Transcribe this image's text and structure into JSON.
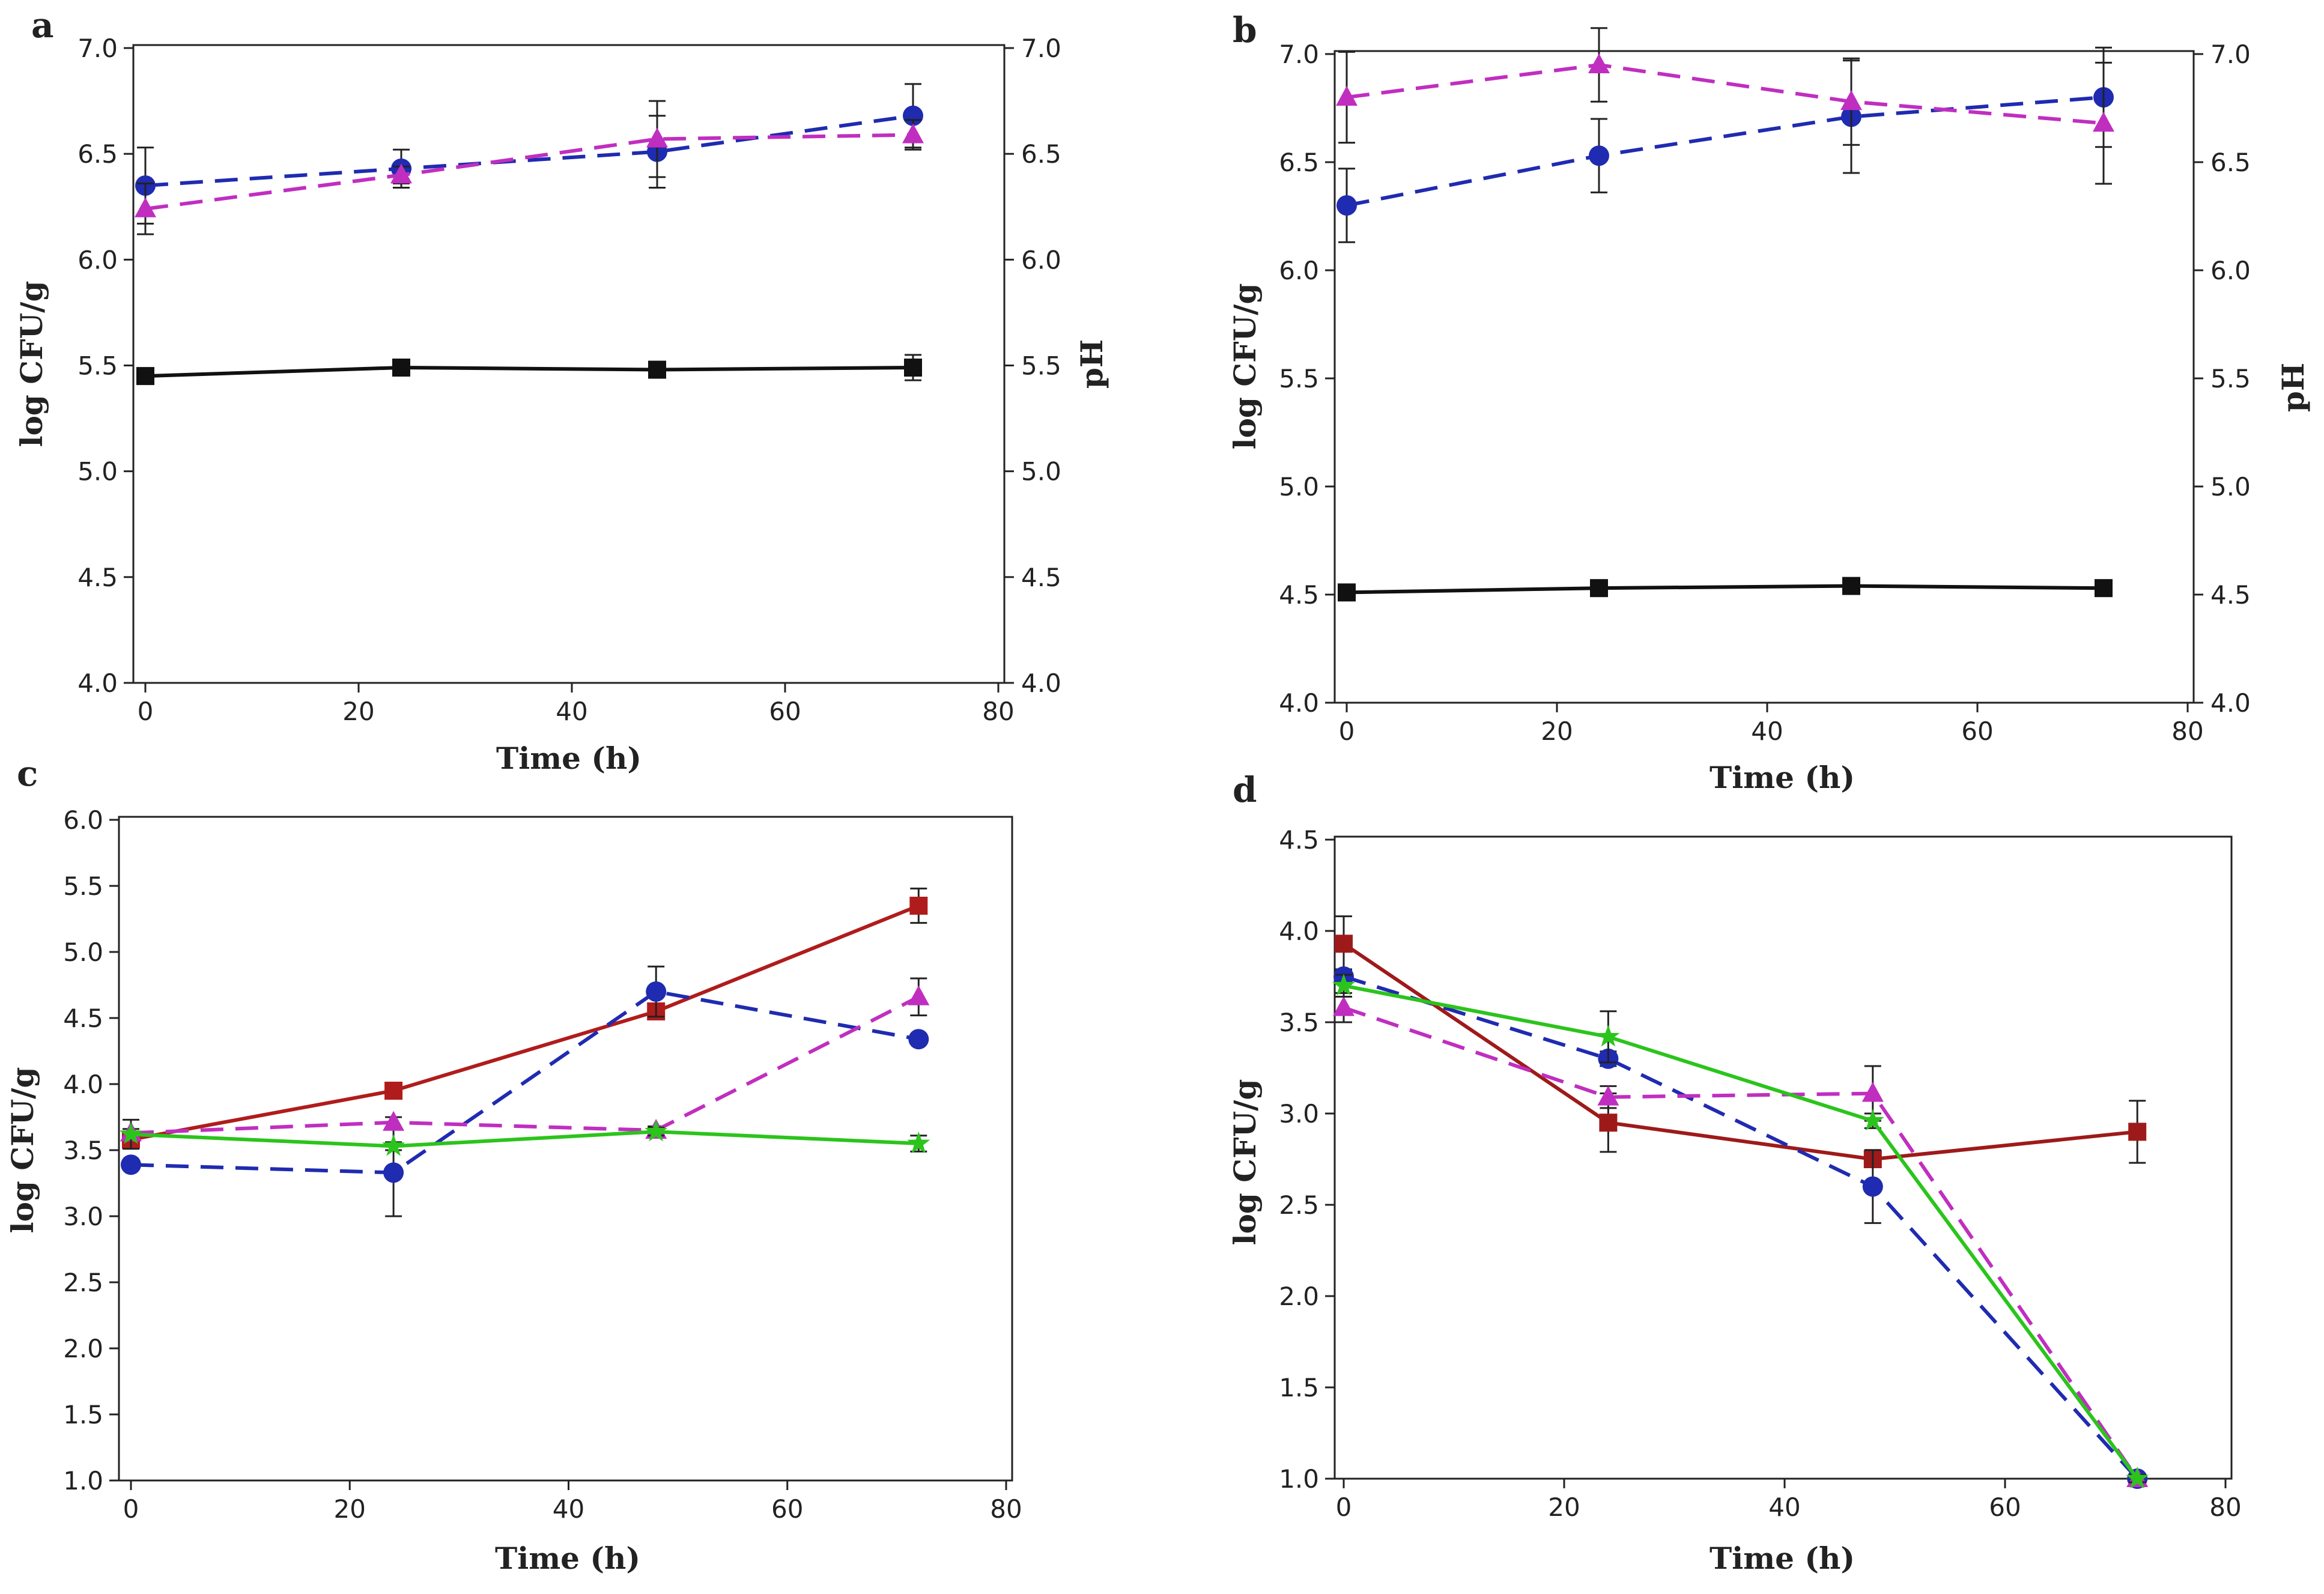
{
  "figure": {
    "panel_labels": [
      "a",
      "b",
      "c",
      "d"
    ]
  },
  "chart_data": [
    {
      "panel": "a",
      "type": "line",
      "title": "",
      "xlabel": "Time (h)",
      "ylabel": "log CFU/g",
      "y2label": "pH",
      "xlim": [
        0,
        80
      ],
      "ylim": [
        4.0,
        7.0
      ],
      "y2lim": [
        4.0,
        7.0
      ],
      "xticks": [
        "0",
        "20",
        "40",
        "60",
        "80"
      ],
      "yticks": [
        "4.0",
        "4.5",
        "5.0",
        "5.5",
        "6.0",
        "6.5",
        "7.0"
      ],
      "y2ticks": [
        "4.0",
        "4.5",
        "5.0",
        "5.5",
        "6.0",
        "6.5",
        "7.0"
      ],
      "x": [
        0,
        24,
        48,
        72
      ],
      "series": [
        {
          "name": "pH",
          "color": "#111111",
          "dash": "solid",
          "marker": "square",
          "axis": "right",
          "values": [
            5.45,
            5.49,
            5.48,
            5.49
          ],
          "errors": [
            0.02,
            0.02,
            0.03,
            0.06
          ]
        },
        {
          "name": "series-blue",
          "color": "#1f2bb0",
          "dash": "dashed",
          "marker": "circle",
          "axis": "left",
          "values": [
            6.35,
            6.43,
            6.51,
            6.68
          ],
          "errors": [
            0.18,
            0.09,
            0.17,
            0.15
          ]
        },
        {
          "name": "series-magenta",
          "color": "#c02ec0",
          "dash": "dashed",
          "marker": "triangle",
          "axis": "left",
          "values": [
            6.24,
            6.4,
            6.57,
            6.59
          ],
          "errors": [
            0.12,
            0.04,
            0.18,
            0.07
          ]
        }
      ]
    },
    {
      "panel": "b",
      "type": "line",
      "title": "",
      "xlabel": "Time (h)",
      "ylabel": "log CFU/g",
      "y2label": "pH",
      "xlim": [
        0,
        80
      ],
      "ylim": [
        4.0,
        7.0
      ],
      "y2lim": [
        4.0,
        7.0
      ],
      "xticks": [
        "0",
        "20",
        "40",
        "60",
        "80"
      ],
      "yticks": [
        "4.0",
        "4.5",
        "5.0",
        "5.5",
        "6.0",
        "6.5",
        "7.0"
      ],
      "y2ticks": [
        "4.0",
        "4.5",
        "5.0",
        "5.5",
        "6.0",
        "6.5",
        "7.0"
      ],
      "x": [
        0,
        24,
        48,
        72
      ],
      "series": [
        {
          "name": "pH",
          "color": "#111111",
          "dash": "solid",
          "marker": "square",
          "axis": "right",
          "values": [
            4.51,
            4.53,
            4.54,
            4.53
          ],
          "errors": [
            0.02,
            0.01,
            0.01,
            0.01
          ]
        },
        {
          "name": "series-blue",
          "color": "#1f2bb0",
          "dash": "dashed",
          "marker": "circle",
          "axis": "left",
          "values": [
            6.3,
            6.53,
            6.71,
            6.8
          ],
          "errors": [
            0.17,
            0.17,
            0.26,
            0.23
          ]
        },
        {
          "name": "series-magenta",
          "color": "#c02ec0",
          "dash": "dashed",
          "marker": "triangle",
          "axis": "left",
          "values": [
            6.8,
            6.95,
            6.78,
            6.68
          ],
          "errors": [
            0.21,
            0.17,
            0.2,
            0.28
          ]
        }
      ]
    },
    {
      "panel": "c",
      "type": "line",
      "title": "",
      "xlabel": "Time (h)",
      "ylabel": "log CFU/g",
      "xlim": [
        0,
        80
      ],
      "ylim": [
        1.0,
        6.0
      ],
      "xticks": [
        "0",
        "20",
        "40",
        "60",
        "80"
      ],
      "yticks": [
        "1.0",
        "1.5",
        "2.0",
        "2.5",
        "3.0",
        "3.5",
        "4.0",
        "4.5",
        "5.0",
        "5.5",
        "6.0"
      ],
      "x": [
        0,
        24,
        48,
        72
      ],
      "series": [
        {
          "name": "series-red",
          "color": "#b01c1c",
          "dash": "solid",
          "marker": "square",
          "values": [
            3.58,
            3.95,
            4.55,
            5.35
          ],
          "errors": [
            0.05,
            0.03,
            0.05,
            0.13
          ]
        },
        {
          "name": "series-blue",
          "color": "#1f2bb0",
          "dash": "dashed",
          "marker": "circle",
          "values": [
            3.39,
            3.33,
            4.7,
            4.34
          ],
          "errors": [
            0.03,
            0.33,
            0.19,
            0.03
          ]
        },
        {
          "name": "series-magenta",
          "color": "#c02ec0",
          "dash": "dashed",
          "marker": "triangle",
          "values": [
            3.63,
            3.71,
            3.65,
            4.66
          ],
          "errors": [
            0.03,
            0.04,
            0.03,
            0.14
          ]
        },
        {
          "name": "series-green",
          "color": "#2bc41c",
          "dash": "solid",
          "marker": "star",
          "values": [
            3.62,
            3.53,
            3.64,
            3.55
          ],
          "errors": [
            0.11,
            0.03,
            0.03,
            0.06
          ]
        }
      ]
    },
    {
      "panel": "d",
      "type": "line",
      "title": "",
      "xlabel": "Time (h)",
      "ylabel": "log CFU/g",
      "xlim": [
        0,
        80
      ],
      "ylim": [
        1.0,
        4.5
      ],
      "xticks": [
        "0",
        "20",
        "40",
        "60",
        "80"
      ],
      "yticks": [
        "1.0",
        "1.5",
        "2.0",
        "2.5",
        "3.0",
        "3.5",
        "4.0",
        "4.5"
      ],
      "x": [
        0,
        24,
        48,
        72
      ],
      "series": [
        {
          "name": "series-red",
          "color": "#9e1a1a",
          "dash": "solid",
          "marker": "square",
          "values": [
            3.93,
            2.95,
            2.75,
            2.9
          ],
          "errors": [
            0.15,
            0.16,
            0.04,
            0.17
          ]
        },
        {
          "name": "series-blue",
          "color": "#1f2bb0",
          "dash": "dashed",
          "marker": "circle",
          "values": [
            3.75,
            3.3,
            2.6,
            1.0
          ],
          "errors": [
            0.04,
            0.04,
            0.2,
            0.02
          ]
        },
        {
          "name": "series-magenta",
          "color": "#c02ec0",
          "dash": "dashed",
          "marker": "triangle",
          "values": [
            3.58,
            3.09,
            3.11,
            1.0
          ],
          "errors": [
            0.08,
            0.06,
            0.15,
            0.02
          ]
        },
        {
          "name": "series-green",
          "color": "#2bc41c",
          "dash": "solid",
          "marker": "star",
          "values": [
            3.7,
            3.42,
            2.96,
            1.0
          ],
          "errors": [
            0.06,
            0.14,
            0.04,
            0.02
          ]
        }
      ]
    }
  ]
}
